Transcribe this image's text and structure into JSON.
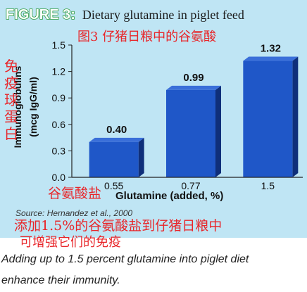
{
  "figure": {
    "label": "FIGURE 3:",
    "title": "Dietary glutamine in piglet feed",
    "source": "Source: Hernandez et al., 2000"
  },
  "overlays": {
    "title_cn": "图3 仔猪日粮中的谷氨酸",
    "ylabel_cn": [
      "免",
      "疫",
      "球",
      "蛋",
      "白"
    ],
    "xlabel_cn": "谷氨酸盐",
    "caption_cn_1": "添加1.5%的谷氨酸盐到仔猪日粮中",
    "caption_cn_2": "可增强它们的免疫"
  },
  "caption": {
    "line1": "Adding up to 1.5 percent glutamine into piglet diet",
    "line2": "enhance their immunity."
  },
  "chart_data": {
    "type": "bar",
    "categories": [
      "0.55",
      "0.77",
      "1.5"
    ],
    "values": [
      0.4,
      0.99,
      1.32
    ],
    "data_labels": [
      "0.40",
      "0.99",
      "1.32"
    ],
    "xlabel": "Glutamine (added, %)",
    "ylabel": "Immunoglobulins",
    "ylabel_unit": "(mcg IgG/ml)",
    "ylim": [
      0,
      1.5
    ],
    "yticks": [
      "0.0",
      "0.3",
      "0.6",
      "0.9",
      "1.2",
      "1.5"
    ],
    "grid": false,
    "legend": "none"
  },
  "colors": {
    "background": "#bfe5f4",
    "bar": "#1f57c8",
    "bar_side": "#0f2f7a",
    "label_green": "#2e9a3e",
    "overlay_red": "#e8262a"
  }
}
